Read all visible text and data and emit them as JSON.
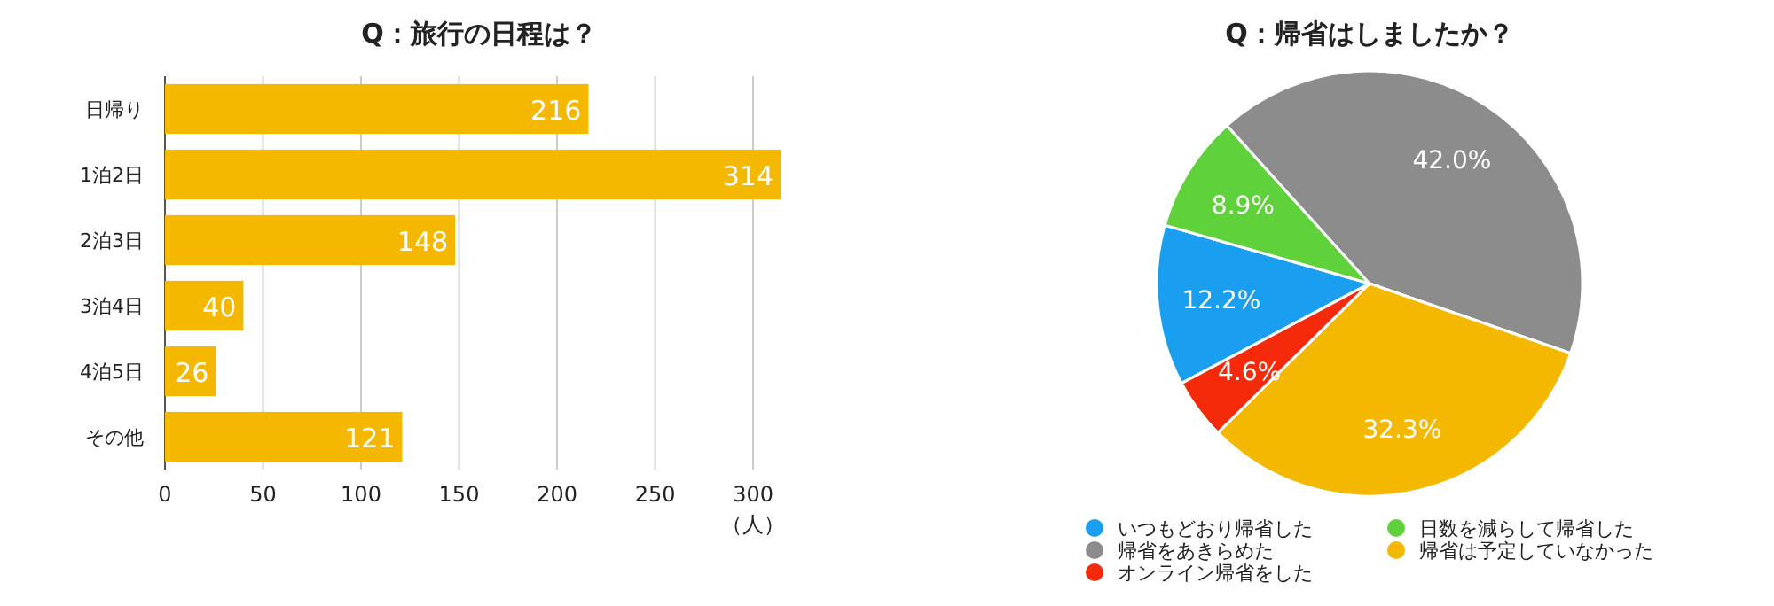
{
  "chart_data": [
    {
      "type": "bar",
      "orientation": "horizontal",
      "title": "Q：旅行の日程は？",
      "xlabel": "（人）",
      "categories": [
        "日帰り",
        "1泊2日",
        "2泊3日",
        "3泊4日",
        "4泊5日",
        "その他"
      ],
      "values": [
        216,
        314,
        148,
        40,
        26,
        121
      ],
      "color": "#f5b800",
      "xlim": [
        0,
        314
      ],
      "xticks": [
        0,
        50,
        100,
        150,
        200,
        250,
        300
      ],
      "grid": "x",
      "data_labels": true
    },
    {
      "type": "pie",
      "title": "Q：帰省はしましたか？",
      "categories": [
        "いつもどおり帰省した",
        "日数を減らして帰省した",
        "帰省をあきらめた",
        "帰省は予定していなかった",
        "オンライン帰省をした"
      ],
      "values": [
        12.2,
        8.9,
        42.0,
        32.3,
        4.6
      ],
      "colors": [
        "#1a9ff0",
        "#5fd13a",
        "#8c8c8c",
        "#f5b800",
        "#f52a0a"
      ],
      "value_labels": [
        "12.2%",
        "8.9%",
        "42.0%",
        "32.3%",
        "4.6%"
      ],
      "legend": "bottom"
    }
  ]
}
